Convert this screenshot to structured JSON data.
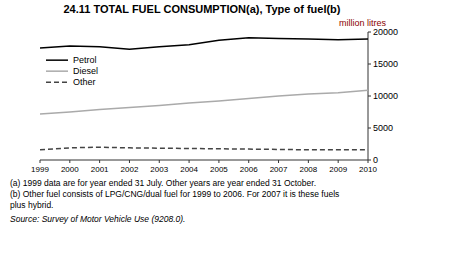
{
  "chart_data": {
    "type": "line",
    "title": "24.11   TOTAL FUEL CONSUMPTION(a), Type of fuel(b)",
    "ylabel": "million litres",
    "x": [
      1999,
      2000,
      2001,
      2002,
      2003,
      2004,
      2005,
      2006,
      2007,
      2008,
      2009,
      2010
    ],
    "xlim": [
      1999,
      2010
    ],
    "xticks": [
      1999,
      2000,
      2001,
      2002,
      2003,
      2004,
      2005,
      2006,
      2007,
      2008,
      2009,
      2010
    ],
    "ylim": [
      0,
      20000
    ],
    "yticks": [
      0,
      5000,
      10000,
      15000,
      20000
    ],
    "grid": false,
    "legend": "upper left",
    "series": [
      {
        "name": "Petrol",
        "color": "#000000",
        "line_style": "solid",
        "values": [
          17500,
          17800,
          17700,
          17300,
          17700,
          18000,
          18700,
          19100,
          19000,
          18900,
          18800,
          18900
        ]
      },
      {
        "name": "Diesel",
        "color": "#aaaaaa",
        "line_style": "solid",
        "values": [
          7200,
          7500,
          7900,
          8200,
          8500,
          8900,
          9200,
          9600,
          10000,
          10300,
          10500,
          10900
        ]
      },
      {
        "name": "Other",
        "color": "#444444",
        "line_style": "dashed",
        "values": [
          1600,
          1900,
          2000,
          1900,
          1850,
          1800,
          1750,
          1700,
          1650,
          1600,
          1600,
          1600
        ]
      }
    ],
    "annotations": [
      "(a) 1999 data are for year ended 31 July. Other years are year ended 31 October.",
      "(b) Other fuel consists of LPG/CNG/dual fuel for 1999 to 2006. For 2007 it is these fuels",
      " plus hybrid.",
      "Source: Survey of Motor Vehicle Use (9208.0)."
    ]
  }
}
